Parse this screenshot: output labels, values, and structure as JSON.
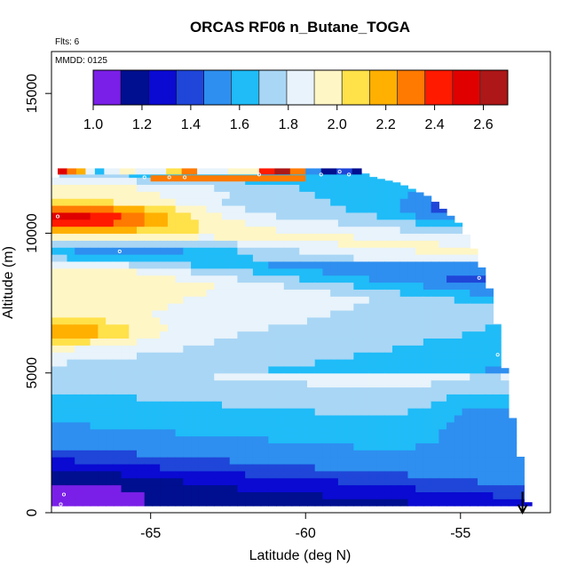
{
  "title": "ORCAS RF06 n_Butane_TOGA",
  "flts_text": "Flts: 6",
  "mmdd_text": "MMDD: 0125",
  "colorbar": {
    "colors": [
      "#7a1fe8",
      "#000f8f",
      "#0a0ad2",
      "#1f46d8",
      "#2e8ff0",
      "#1fbcf8",
      "#a9d6f5",
      "#e8f3fb",
      "#fff6c6",
      "#ffe14a",
      "#ffb000",
      "#ff7a00",
      "#ff1a00",
      "#e00000",
      "#ad1717"
    ],
    "ticks": [
      "1.0",
      "1.2",
      "1.4",
      "1.6",
      "1.8",
      "2.0",
      "2.2",
      "2.4",
      "2.6"
    ],
    "range": [
      1.0,
      2.7
    ]
  },
  "chart_data": {
    "type": "heatmap",
    "title": "ORCAS RF06 n_Butane_TOGA",
    "xlabel": "Latitude (deg N)",
    "ylabel": "Altitude (m)",
    "xlim": [
      -68.2,
      -52.1
    ],
    "ylim": [
      0,
      16500
    ],
    "xticks": [
      -65,
      -60,
      -55
    ],
    "xtick_labels": [
      "-65",
      "-60",
      "-55"
    ],
    "yticks": [
      0,
      5000,
      10000,
      15000
    ],
    "ytick_labels": [
      "0",
      "5000",
      "10000",
      "15000"
    ],
    "grid": false,
    "cell_lat_width": 0.25,
    "cell_alt_height": 250,
    "top_boundary_points": [
      {
        "lat": -68.2,
        "alt": 11900
      },
      {
        "lat": -67.8,
        "alt": 12200
      },
      {
        "lat": -58.2,
        "alt": 12200
      },
      {
        "lat": -57.8,
        "alt": 12000
      },
      {
        "lat": -57.0,
        "alt": 11800
      },
      {
        "lat": -56.0,
        "alt": 11300
      },
      {
        "lat": -55.0,
        "alt": 10300
      },
      {
        "lat": -54.5,
        "alt": 9300
      },
      {
        "lat": -54.0,
        "alt": 7800
      },
      {
        "lat": -53.8,
        "alt": 6600
      },
      {
        "lat": -53.5,
        "alt": 4700
      },
      {
        "lat": -53.3,
        "alt": 3200
      },
      {
        "lat": -53.0,
        "alt": 1600
      },
      {
        "lat": -52.8,
        "alt": 200
      }
    ],
    "bottom_alt": 250,
    "vertical_profile": [
      {
        "alt": 250,
        "value": 1.15
      },
      {
        "alt": 1000,
        "value": 1.25
      },
      {
        "alt": 2000,
        "value": 1.5
      },
      {
        "alt": 3000,
        "value": 1.6
      },
      {
        "alt": 4000,
        "value": 1.7
      },
      {
        "alt": 5000,
        "value": 1.82
      },
      {
        "alt": 6000,
        "value": 1.9
      },
      {
        "alt": 7000,
        "value": 1.97
      },
      {
        "alt": 8000,
        "value": 2.02
      },
      {
        "alt": 9000,
        "value": 1.7
      },
      {
        "alt": 10000,
        "value": 1.95
      },
      {
        "alt": 11000,
        "value": 1.7
      },
      {
        "alt": 12200,
        "value": 1.6
      }
    ],
    "features": [
      {
        "lat": -67.6,
        "alt": 10600,
        "lat_span": 3.5,
        "alt_span": 650,
        "value": 2.5
      },
      {
        "lat": -67.2,
        "alt": 11500,
        "lat_span": 5.0,
        "alt_span": 450,
        "value": 1.95
      },
      {
        "lat": -66.0,
        "alt": 9300,
        "lat_span": 4.0,
        "alt_span": 350,
        "value": 1.5
      },
      {
        "lat": -67.8,
        "alt": 6500,
        "lat_span": 2.5,
        "alt_span": 500,
        "value": 2.2
      },
      {
        "lat": -67.8,
        "alt": 8200,
        "lat_span": 3.0,
        "alt_span": 700,
        "value": 2.0
      },
      {
        "lat": -68.0,
        "alt": 600,
        "lat_span": 3.0,
        "alt_span": 600,
        "value": 1.05
      },
      {
        "lat": -55.0,
        "alt": 11000,
        "lat_span": 2.0,
        "alt_span": 600,
        "value": 1.4
      },
      {
        "lat": -54.0,
        "alt": 3000,
        "lat_span": 2.0,
        "alt_span": 1500,
        "value": 1.5
      }
    ],
    "top_strip": {
      "alt": 12100,
      "cells": [
        {
          "lat0": -68.0,
          "lat1": -67.7,
          "value": 2.55
        },
        {
          "lat0": -67.7,
          "lat1": -67.4,
          "value": 2.3
        },
        {
          "lat0": -67.4,
          "lat1": -67.1,
          "value": 2.15
        },
        {
          "lat0": -67.1,
          "lat1": -66.8,
          "value": 1.9
        },
        {
          "lat0": -66.8,
          "lat1": -66.5,
          "value": 1.6
        },
        {
          "lat0": -66.5,
          "lat1": -66.0,
          "value": 1.85
        },
        {
          "lat0": -66.0,
          "lat1": -65.5,
          "value": 1.95
        },
        {
          "lat0": -65.5,
          "lat1": -65.0,
          "value": 1.8
        },
        {
          "lat0": -65.0,
          "lat1": -64.5,
          "value": 1.9
        },
        {
          "lat0": -64.5,
          "lat1": -64.0,
          "value": 2.1
        },
        {
          "lat0": -64.0,
          "lat1": -63.5,
          "value": 2.3
        },
        {
          "lat0": -63.5,
          "lat1": -62.5,
          "value": 1.85
        },
        {
          "lat0": -62.5,
          "lat1": -61.5,
          "value": 2.0
        },
        {
          "lat0": -61.5,
          "lat1": -61.0,
          "value": 2.45
        },
        {
          "lat0": -61.0,
          "lat1": -60.5,
          "value": 2.6
        },
        {
          "lat0": -60.5,
          "lat1": -60.0,
          "value": 2.3
        },
        {
          "lat0": -60.0,
          "lat1": -59.5,
          "value": 1.5
        },
        {
          "lat0": -59.5,
          "lat1": -59.0,
          "value": 1.15
        },
        {
          "lat0": -59.0,
          "lat1": -58.5,
          "value": 1.4
        },
        {
          "lat0": -58.5,
          "lat1": -58.2,
          "value": 1.2
        }
      ],
      "orange_band": {
        "lat0": -65.0,
        "lat1": -60.0,
        "alt": 11850,
        "value": 2.28
      }
    },
    "marker_points": [
      {
        "lat": -68.0,
        "alt": 10600
      },
      {
        "lat": -66.0,
        "alt": 9350
      },
      {
        "lat": -55.0,
        "alt": 11050
      },
      {
        "lat": -54.4,
        "alt": 8400
      },
      {
        "lat": -53.8,
        "alt": 5650
      },
      {
        "lat": -67.8,
        "alt": 650
      },
      {
        "lat": -67.9,
        "alt": 300
      },
      {
        "lat": -65.2,
        "alt": 12000
      },
      {
        "lat": -64.4,
        "alt": 12000
      },
      {
        "lat": -63.9,
        "alt": 12000
      },
      {
        "lat": -61.5,
        "alt": 12100
      },
      {
        "lat": -59.5,
        "alt": 12100
      },
      {
        "lat": -58.9,
        "alt": 12200
      },
      {
        "lat": -58.6,
        "alt": 12100
      }
    ],
    "arrow": {
      "lat": -53.0,
      "alt_top": 750,
      "alt_bottom": 0
    }
  }
}
